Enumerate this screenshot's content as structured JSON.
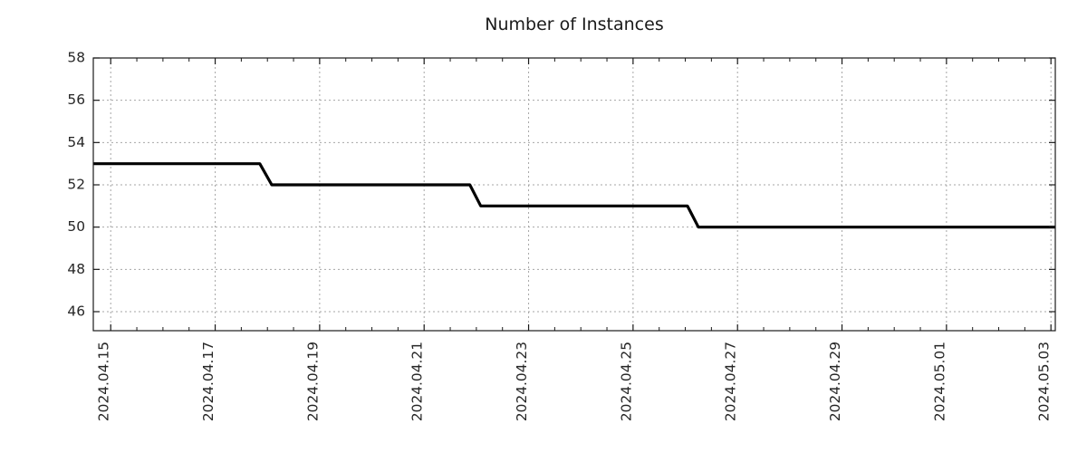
{
  "chart_data": {
    "type": "line",
    "title": "Number of Instances",
    "step": true,
    "xlabel": "",
    "ylabel": "",
    "line_color": "#000000",
    "line_width": 3.2,
    "grid": true,
    "grid_color": "#a6a6a6",
    "axis_color": "#1a1a1a",
    "text_color": "#262626",
    "background": "#ffffff",
    "legend": "none",
    "xlim": [
      "2024-04-14T16:00",
      "2024-05-03T02:00"
    ],
    "ylim": [
      45.1,
      58
    ],
    "y_ticks": [
      46,
      48,
      50,
      52,
      54,
      56,
      58
    ],
    "x_ticks": [
      {
        "date": "2024-04-15",
        "label": "2024.04.15"
      },
      {
        "date": "2024-04-17",
        "label": "2024.04.17"
      },
      {
        "date": "2024-04-19",
        "label": "2024.04.19"
      },
      {
        "date": "2024-04-21",
        "label": "2024.04.21"
      },
      {
        "date": "2024-04-23",
        "label": "2024.04.23"
      },
      {
        "date": "2024-04-25",
        "label": "2024.04.25"
      },
      {
        "date": "2024-04-27",
        "label": "2024.04.27"
      },
      {
        "date": "2024-04-29",
        "label": "2024.04.29"
      },
      {
        "date": "2024-05-01",
        "label": "2024.05.01"
      },
      {
        "date": "2024-05-03",
        "label": "2024.05.03"
      }
    ],
    "x_minor_interval_hours": 12,
    "series": [
      {
        "name": "Number of Instances",
        "points": [
          [
            "2024-04-14T16:00",
            53
          ],
          [
            "2024-04-17T20:30",
            53
          ],
          [
            "2024-04-18T02:00",
            52
          ],
          [
            "2024-04-21T21:00",
            52
          ],
          [
            "2024-04-22T02:00",
            51
          ],
          [
            "2024-04-26T01:00",
            51
          ],
          [
            "2024-04-26T06:00",
            50
          ],
          [
            "2024-05-03T02:00",
            50
          ]
        ]
      }
    ]
  }
}
